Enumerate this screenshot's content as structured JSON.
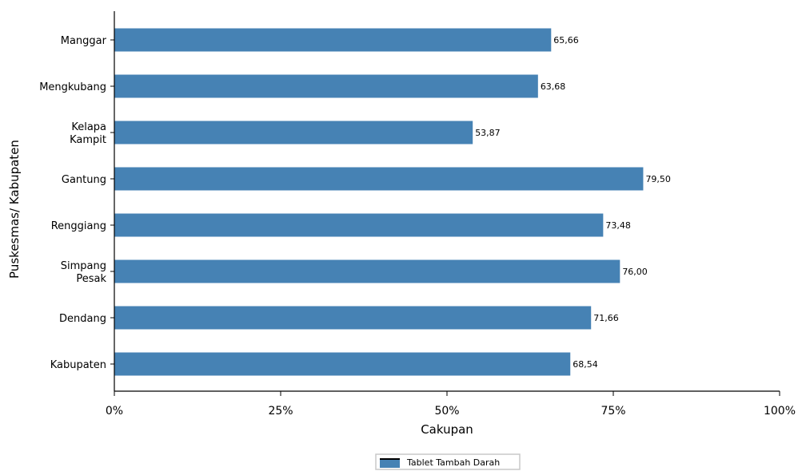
{
  "chart_data": {
    "type": "bar",
    "orientation": "horizontal",
    "categories": [
      "Manggar",
      "Mengkubang",
      "Kelapa Kampit",
      "Gantung",
      "Renggiang",
      "Simpang Pesak",
      "Dendang",
      "Kabupaten"
    ],
    "series": [
      {
        "name": "Tablet Tambah Darah",
        "values": [
          65.66,
          63.68,
          53.87,
          79.5,
          73.48,
          76.0,
          71.66,
          68.54
        ],
        "labels": [
          "65,66",
          "63,68",
          "53,87",
          "79,50",
          "73,48",
          "76,00",
          "71,66",
          "68,54"
        ],
        "color": "#4682b4"
      }
    ],
    "xlabel": "Cakupan",
    "ylabel": "Puskesmas/ Kabupaten",
    "xlim": [
      0,
      100
    ],
    "x_ticks": [
      "0%",
      "25%",
      "50%",
      "75%",
      "100%"
    ],
    "grid": false,
    "legend": "bottom-center"
  }
}
